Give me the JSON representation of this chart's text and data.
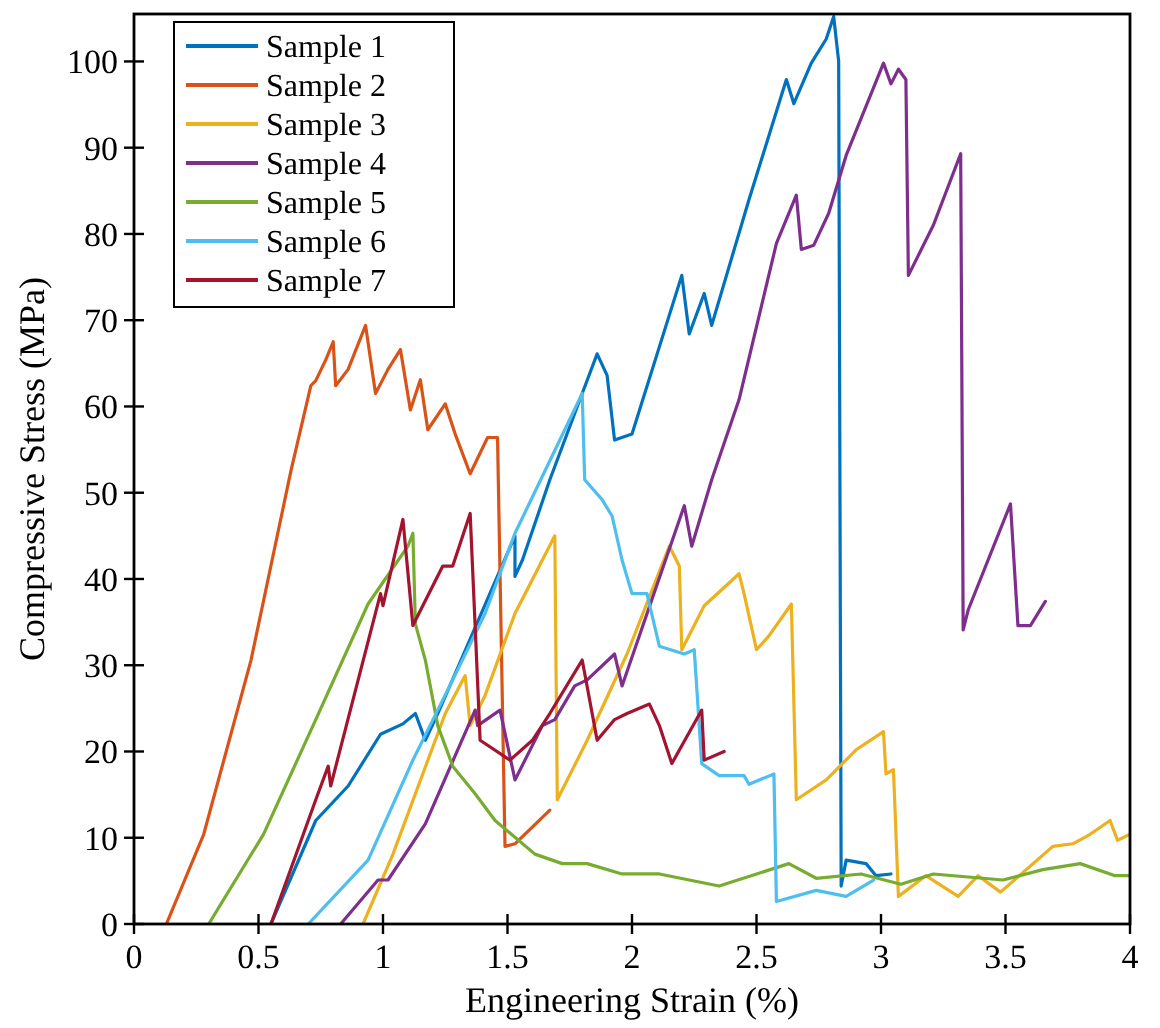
{
  "chart_data": {
    "type": "line",
    "xlabel": "Engineering Strain (%)",
    "ylabel": "Compressive Stress (MPa)",
    "xlim": [
      0,
      4
    ],
    "xticks": [
      0,
      0.5,
      1,
      1.5,
      2,
      2.5,
      3,
      3.5,
      4
    ],
    "ylim": [
      0,
      105.5
    ],
    "yticks": [
      0,
      10,
      20,
      30,
      40,
      50,
      60,
      70,
      80,
      90,
      100
    ],
    "grid": false,
    "legend": "top left",
    "marker": "none",
    "line_style": "solid",
    "series": [
      {
        "name": "Sample 1",
        "color": "#0072bd",
        "x": [
          0.55,
          0.73,
          0.86,
          0.99,
          1.08,
          1.13,
          1.17,
          1.22,
          1.53,
          1.53,
          1.56,
          1.67,
          1.8,
          1.86,
          1.9,
          1.93,
          2.0,
          2.2,
          2.23,
          2.29,
          2.32,
          2.47,
          2.62,
          2.65,
          2.72,
          2.78,
          2.81,
          2.83,
          2.84,
          2.86,
          2.94,
          2.98,
          3.04
        ],
        "values": [
          0,
          12,
          16,
          22,
          23.2,
          24.4,
          21.3,
          24.4,
          45,
          40.3,
          42.2,
          51.5,
          61.5,
          66.1,
          63.6,
          56.1,
          56.8,
          75.2,
          68.4,
          73.1,
          69.4,
          84,
          97.9,
          95.1,
          99.8,
          102.6,
          105.2,
          100,
          4.4,
          7.4,
          7,
          5.6,
          5.8
        ]
      },
      {
        "name": "Sample 2",
        "color": "#d95319",
        "x": [
          0.13,
          0.28,
          0.47,
          0.63,
          0.71,
          0.73,
          0.77,
          0.8,
          0.81,
          0.86,
          0.93,
          0.97,
          1.02,
          1.07,
          1.11,
          1.15,
          1.18,
          1.25,
          1.29,
          1.35,
          1.42,
          1.46,
          1.49,
          1.53,
          1.67
        ],
        "values": [
          0,
          10.4,
          30.6,
          52.5,
          62.4,
          63,
          65.4,
          67.5,
          62.4,
          64.3,
          69.4,
          61.5,
          64.3,
          66.6,
          59.6,
          63.1,
          57.3,
          60.3,
          56.8,
          52.2,
          56.4,
          56.4,
          9,
          9.3,
          13.2
        ]
      },
      {
        "name": "Sample 3",
        "color": "#edb120",
        "x": [
          0.92,
          1.04,
          1.25,
          1.33,
          1.35,
          1.41,
          1.53,
          1.69,
          1.7,
          1.82,
          1.98,
          2.15,
          2.19,
          2.2,
          2.29,
          2.43,
          2.45,
          2.5,
          2.55,
          2.64,
          2.66,
          2.78,
          2.9,
          3.01,
          3.02,
          3.05,
          3.07,
          3.18,
          3.31,
          3.39,
          3.48,
          3.69,
          3.77,
          3.84,
          3.92,
          3.95,
          4.0
        ],
        "values": [
          0,
          8.1,
          24.4,
          28.8,
          23,
          26.5,
          36,
          45,
          14.4,
          21.3,
          31.3,
          43.8,
          41.5,
          31.8,
          36.9,
          40.6,
          38.3,
          31.8,
          33.4,
          37.1,
          14.4,
          16.7,
          20.2,
          22.3,
          17.4,
          17.9,
          3.2,
          5.6,
          3.2,
          5.6,
          3.7,
          9,
          9.3,
          10.4,
          12,
          9.7,
          10.4
        ]
      },
      {
        "name": "Sample 4",
        "color": "#7e2f8e",
        "x": [
          0.83,
          0.98,
          1.02,
          1.17,
          1.37,
          1.38,
          1.47,
          1.53,
          1.64,
          1.69,
          1.77,
          1.82,
          1.93,
          1.96,
          2.21,
          2.24,
          2.32,
          2.43,
          2.58,
          2.66,
          2.68,
          2.73,
          2.79,
          2.86,
          3.01,
          3.04,
          3.07,
          3.1,
          3.11,
          3.21,
          3.32,
          3.33,
          3.35,
          3.52,
          3.55,
          3.6,
          3.66
        ],
        "values": [
          0,
          5.1,
          5.1,
          11.6,
          24.8,
          23,
          24.8,
          16.7,
          23,
          23.7,
          27.6,
          28.3,
          31.3,
          27.6,
          48.5,
          43.8,
          51.5,
          60.8,
          78.9,
          84.5,
          78.2,
          78.7,
          82.4,
          89.1,
          99.8,
          97.4,
          99.1,
          97.9,
          75.2,
          81,
          89.3,
          34.1,
          36.4,
          48.7,
          34.6,
          34.6,
          37.4
        ]
      },
      {
        "name": "Sample 5",
        "color": "#77ac30",
        "x": [
          0.3,
          0.52,
          0.73,
          0.94,
          1.1,
          1.12,
          1.13,
          1.17,
          1.22,
          1.28,
          1.37,
          1.45,
          1.61,
          1.72,
          1.82,
          1.96,
          2.11,
          2.35,
          2.63,
          2.74,
          2.92,
          3.08,
          3.21,
          3.49,
          3.65,
          3.8,
          3.94,
          4.0
        ],
        "values": [
          0,
          10.4,
          23.7,
          37.1,
          43.8,
          45.3,
          34.8,
          30.6,
          23,
          18.3,
          15.1,
          12,
          8.1,
          7,
          7,
          5.8,
          5.8,
          4.4,
          7,
          5.3,
          5.8,
          4.6,
          5.8,
          5.1,
          6.3,
          7,
          5.6,
          5.6
        ]
      },
      {
        "name": "Sample 6",
        "color": "#4dbeee",
        "x": [
          0.7,
          0.94,
          1.12,
          1.28,
          1.41,
          1.53,
          1.8,
          1.81,
          1.88,
          1.92,
          1.96,
          2.0,
          2.06,
          2.11,
          2.21,
          2.25,
          2.28,
          2.35,
          2.45,
          2.47,
          2.57,
          2.58,
          2.74,
          2.86,
          2.97
        ],
        "values": [
          0,
          7.4,
          19,
          28.3,
          36,
          45.3,
          61.5,
          51.5,
          49.2,
          47.3,
          42.2,
          38.3,
          38.3,
          32.2,
          31.3,
          31.8,
          18.6,
          17.2,
          17.2,
          16.2,
          17.4,
          2.6,
          3.9,
          3.2,
          5.1
        ]
      },
      {
        "name": "Sample 7",
        "color": "#a2142f",
        "x": [
          0.55,
          0.73,
          0.78,
          0.79,
          0.99,
          1.0,
          1.08,
          1.12,
          1.24,
          1.28,
          1.35,
          1.37,
          1.39,
          1.51,
          1.6,
          1.67,
          1.8,
          1.86,
          1.93,
          1.98,
          2.07,
          2.11,
          2.16,
          2.28,
          2.29,
          2.37
        ],
        "values": [
          0,
          14.4,
          18.3,
          16,
          38.3,
          36.9,
          46.9,
          34.6,
          41.5,
          41.5,
          47.6,
          34.6,
          21.3,
          19,
          21.3,
          24.4,
          30.6,
          21.3,
          23.7,
          24.4,
          25.5,
          23,
          18.6,
          24.8,
          19,
          20
        ]
      }
    ]
  }
}
